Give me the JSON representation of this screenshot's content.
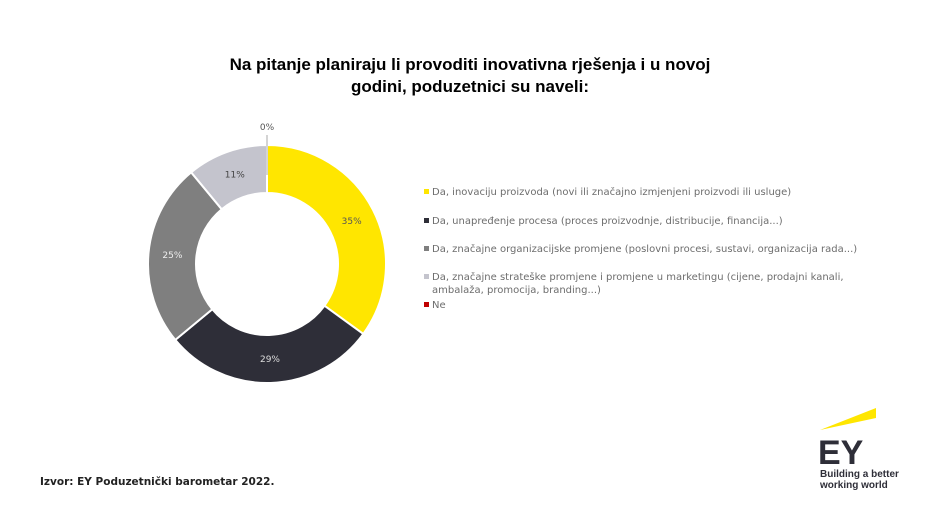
{
  "chart_data": {
    "type": "pie",
    "variant": "donut",
    "title": "Na pitanje planiraju li provoditi inovativna rješenja i u novoj godini, poduzetnici su naveli:",
    "categories": [
      "Da, inovaciju proizvoda (novi ili značajno izmjenjeni proizvodi ili usluge)",
      "Da, unapređenje procesa (proces proizvodnje, distribucije, financija...)",
      "Da, značajne organizacijske promjene (poslovni procesi, sustavi, organizacija rada...)",
      "Da, značajne strateške promjene i promjene u marketingu (cijene, prodajni kanali, ambalaža, promocija, branding...)",
      "Ne"
    ],
    "legend_lines": [
      [
        "Da, inovaciju proizvoda (novi ili značajno izmjenjeni proizvodi ili usluge)"
      ],
      [
        "Da, unapređenje procesa (proces proizvodnje, distribucije, financija...)"
      ],
      [
        "Da, značajne organizacijske promjene (poslovni procesi, sustavi, organizacija rada...)"
      ],
      [
        "Da, značajne strateške promjene i promjene u marketingu (cijene, prodajni kanali,",
        "ambalaža, promocija, branding...)"
      ],
      [
        "Ne"
      ]
    ],
    "values": [
      35,
      29,
      25,
      11,
      0
    ],
    "data_labels": [
      "35%",
      "29%",
      "25%",
      "11%",
      "0%"
    ],
    "colors": [
      "#ffe600",
      "#2e2e38",
      "#7f7f7f",
      "#c4c4cd",
      "#c00000"
    ],
    "label_colors": [
      "#555555",
      "#dddddd",
      "#eeeeee",
      "#444444",
      "#555555"
    ],
    "legend_placement": "right"
  },
  "source": "Izvor: EY Poduzetnički barometar 2022.",
  "logo": {
    "text": "EY",
    "tagline": [
      "Building a better",
      "working world"
    ],
    "accent": "#ffe600"
  }
}
